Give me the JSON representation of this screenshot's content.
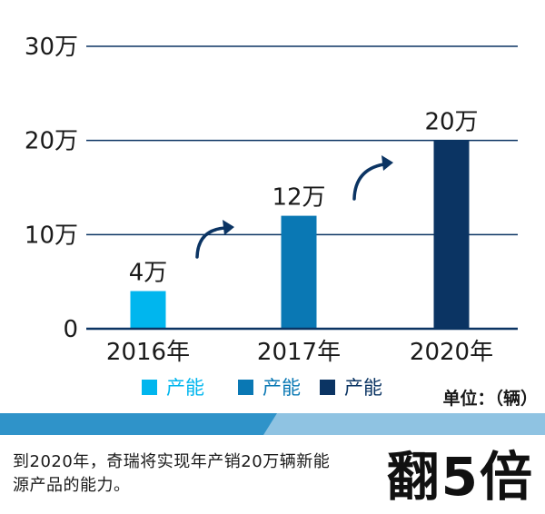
{
  "chart_data": {
    "type": "bar",
    "categories": [
      "2016年",
      "2017年",
      "2020年"
    ],
    "values": [
      4,
      12,
      20
    ],
    "value_labels": [
      "4万",
      "12万",
      "20万"
    ],
    "bar_colors": [
      "#00b6ee",
      "#0a78b4",
      "#0b3463"
    ],
    "ylim": [
      0,
      30
    ],
    "yticks": [
      0,
      10,
      20,
      30
    ],
    "ytick_labels": [
      "0",
      "10万",
      "20万",
      "30万"
    ],
    "grid": true,
    "legend": {
      "placement": "bottom",
      "items": [
        {
          "label": "产能",
          "color": "#00b6ee"
        },
        {
          "label": "产能",
          "color": "#0a78b4"
        },
        {
          "label": "产能",
          "color": "#0b3463"
        }
      ]
    },
    "unit_label": "单位：（辆）",
    "arrows": [
      "up-right",
      "up-right"
    ]
  },
  "footer": {
    "caption": "到2020年，奇瑞将实现年产销20万辆新能源产品的能力。",
    "headline": "翻5倍"
  },
  "colors": {
    "axis": "#0b3463",
    "grid": "#0b3463",
    "text": "#1a1a1a",
    "band_dark": "#2f93c9",
    "band_light": "#8fc3e2"
  }
}
